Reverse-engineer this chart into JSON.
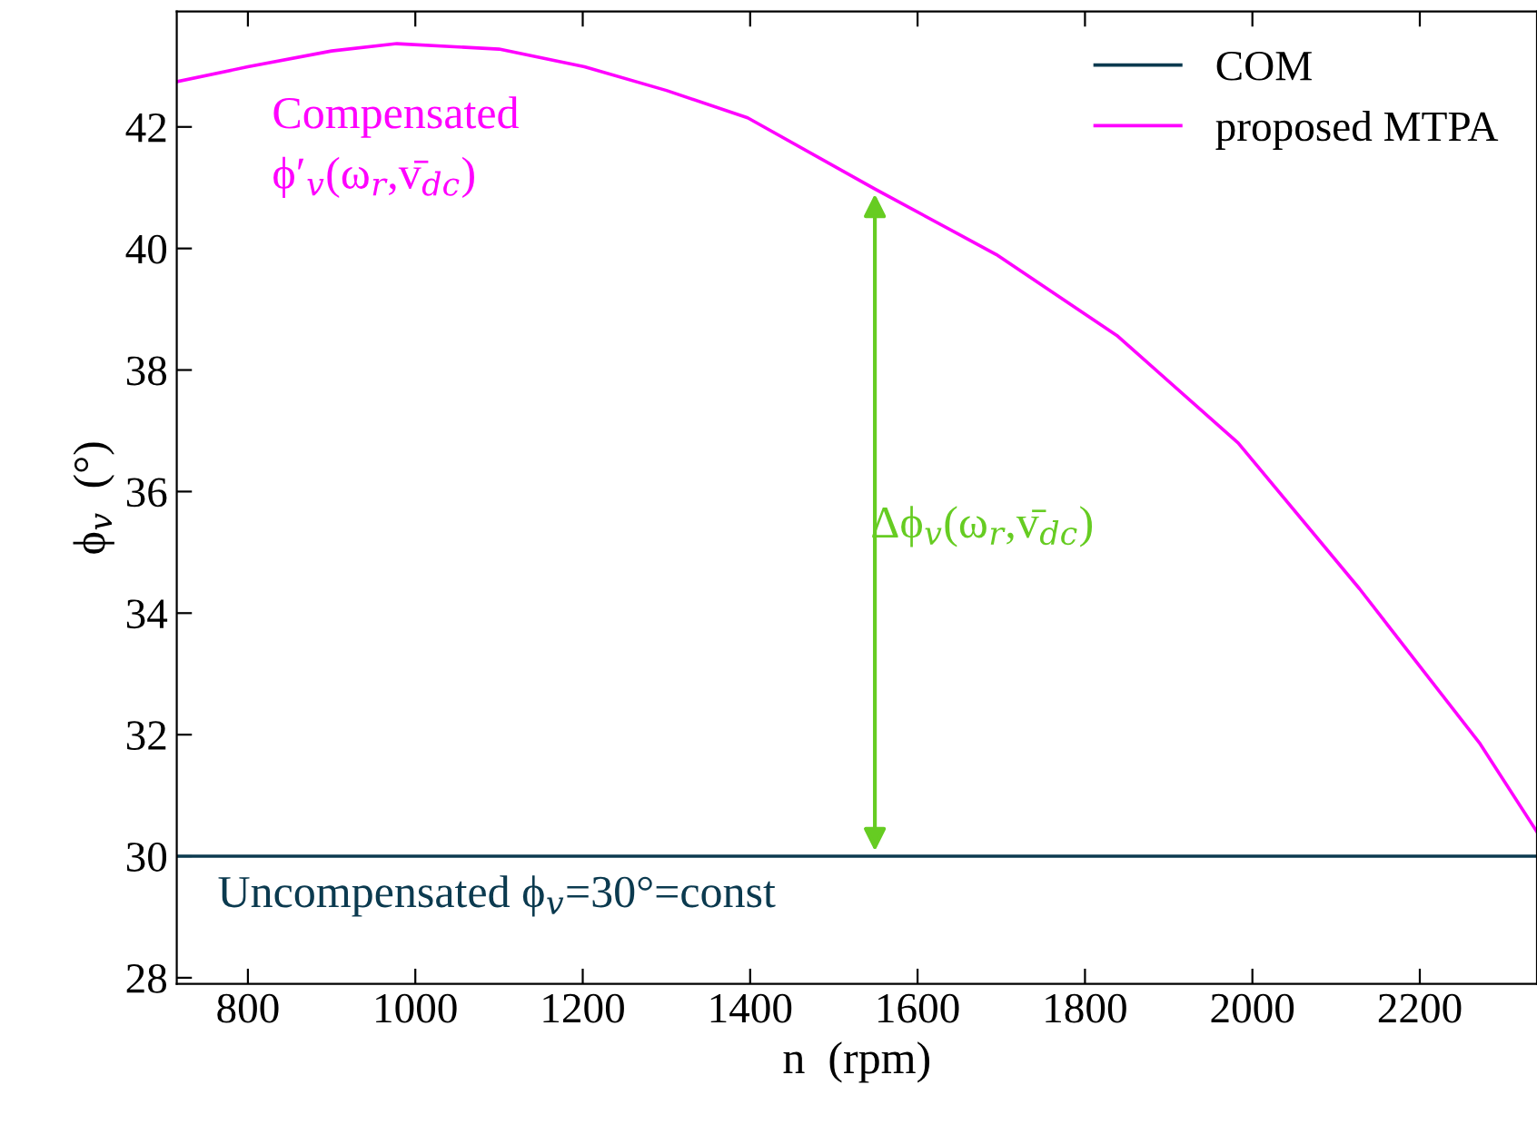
{
  "chart_data": {
    "type": "line",
    "xlabel": "n  (rpm)",
    "ylabel": "ϕ$_{v}$  (°)",
    "x": [
      717,
      800,
      900,
      978,
      1100,
      1202,
      1300,
      1397,
      1549,
      1694,
      1838,
      1983,
      2128,
      2272,
      2340
    ],
    "series": [
      {
        "name": "COM",
        "color": "#0b3a4f",
        "values": [
          30,
          30,
          30,
          30,
          30,
          30,
          30,
          30,
          30,
          30,
          30,
          30,
          30,
          30,
          30
        ]
      },
      {
        "name": "proposed MTPA",
        "color": "#ff00ff",
        "values": [
          42.75,
          42.99,
          43.25,
          43.37,
          43.28,
          42.99,
          42.6,
          42.15,
          40.98,
          39.9,
          38.57,
          36.8,
          34.4,
          31.85,
          30.4
        ]
      }
    ],
    "xlim": [
      715,
      2340
    ],
    "ylim": [
      27.9,
      43.9
    ],
    "xticks": [
      800,
      1000,
      1200,
      1400,
      1600,
      1800,
      2000,
      2200
    ],
    "yticks": [
      28,
      30,
      32,
      34,
      36,
      38,
      40,
      42
    ],
    "grid": false,
    "legend": "top right",
    "annotations": [
      "Compensated\nϕ′$_{v}$(ω$_{r}$,v̄$_{dc}$)",
      "Δϕ$_{v}$(ω$_{r}$,v̄$_{dc}$)",
      "Uncompensated ϕ$_{v}$=30°=const"
    ]
  }
}
